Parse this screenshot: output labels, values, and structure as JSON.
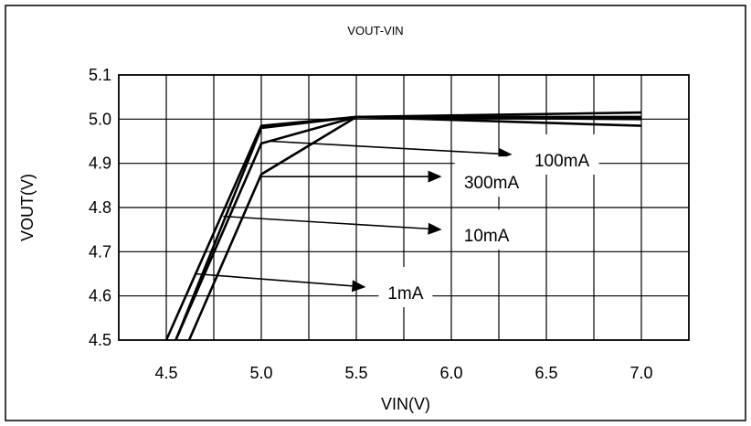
{
  "chart_data": {
    "type": "line",
    "title": "VOUT-VIN",
    "xlabel": "VIN(V)",
    "ylabel": "VOUT(V)",
    "xlim": [
      4.25,
      7.25
    ],
    "ylim": [
      4.5,
      5.1
    ],
    "x_ticks": [
      "4.5",
      "5.0",
      "5.5",
      "6.0",
      "6.5",
      "7.0"
    ],
    "y_ticks": [
      "4.5",
      "4.6",
      "4.7",
      "4.8",
      "4.9",
      "5.0",
      "5.1"
    ],
    "grid": true,
    "series": [
      {
        "name": "1mA",
        "x": [
          4.5,
          5.0,
          5.5,
          7.0
        ],
        "y": [
          4.5,
          4.985,
          5.005,
          5.015
        ]
      },
      {
        "name": "10mA",
        "x": [
          4.55,
          5.0,
          5.5,
          7.0
        ],
        "y": [
          4.5,
          4.98,
          5.005,
          5.0
        ]
      },
      {
        "name": "100mA",
        "x": [
          4.55,
          5.0,
          5.5,
          7.0
        ],
        "y": [
          4.5,
          4.945,
          5.005,
          4.985
        ]
      },
      {
        "name": "300mA",
        "x": [
          4.62,
          5.0,
          5.5,
          7.0
        ],
        "y": [
          4.5,
          4.875,
          5.005,
          5.005
        ]
      }
    ],
    "annotations": [
      {
        "text": "100mA",
        "from": [
          5.05,
          4.95
        ],
        "to": [
          6.32,
          4.92
        ]
      },
      {
        "text": "300mA",
        "from": [
          5.0,
          4.87
        ],
        "to": [
          5.95,
          4.87
        ]
      },
      {
        "text": "10mA",
        "from": [
          4.8,
          4.78
        ],
        "to": [
          5.95,
          4.75
        ]
      },
      {
        "text": "1mA",
        "from": [
          4.65,
          4.65
        ],
        "to": [
          5.55,
          4.62
        ]
      }
    ]
  }
}
